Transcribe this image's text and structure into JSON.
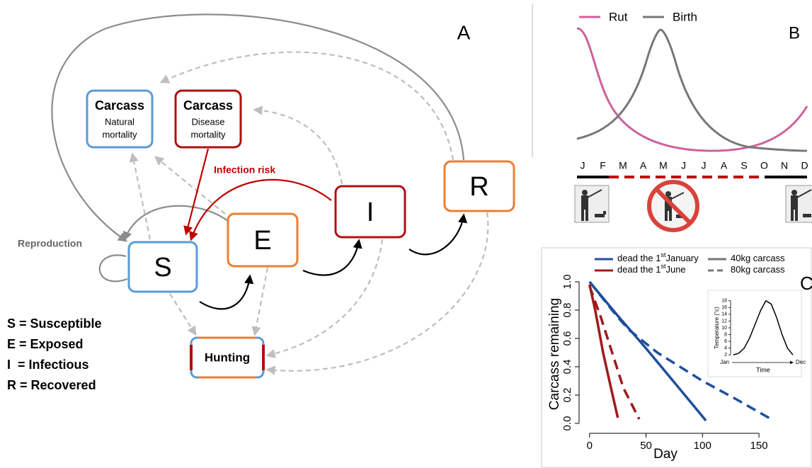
{
  "panel_a": {
    "label": "A",
    "nodes": {
      "carcass_natural": {
        "title": "Carcass",
        "sub": [
          "Natural",
          "mortality"
        ]
      },
      "carcass_disease": {
        "title": "Carcass",
        "sub": [
          "Disease",
          "mortality"
        ]
      },
      "s": "S",
      "e": "E",
      "i": "I",
      "r": "R",
      "hunting": "Hunting"
    },
    "annotations": {
      "infection": "Infection risk",
      "reproduction": "Reproduction"
    },
    "legend": [
      "S = Susceptible",
      "E = Exposed",
      "I  = Infectious",
      "R = Recovered"
    ]
  },
  "panel_b": {
    "label": "B",
    "legend": [
      "Rut",
      "Birth"
    ],
    "months": [
      "J",
      "F",
      "M",
      "A",
      "M",
      "J",
      "J",
      "A",
      "S",
      "O",
      "N",
      "D"
    ]
  },
  "chart_data": [
    {
      "type": "line",
      "label": "C",
      "xlabel": "Day",
      "ylabel": "Carcass remaining",
      "xlim": [
        -8,
        170
      ],
      "ylim": [
        -0.04,
        1.04
      ],
      "xticks": [
        0,
        50,
        100,
        150
      ],
      "yticks": [
        {
          "value": 0,
          "label": "0.0"
        },
        0.2,
        0.4,
        0.6,
        0.8,
        {
          "value": 1,
          "label": "1.0"
        }
      ],
      "legend": [
        {
          "text": "dead the 1",
          "sup": "st",
          "after": "January",
          "color": "#1f4e9c",
          "dash": false
        },
        {
          "text": "dead the 1",
          "sup": "st",
          "after": "June",
          "color": "#9e1b1b",
          "dash": false
        },
        {
          "text": "40kg carcass",
          "color": "#777777",
          "dash": false
        },
        {
          "text": "80kg carcass",
          "color": "#777777",
          "dash": true
        }
      ],
      "series": [
        {
          "color": "#1f4e9c",
          "dash": false,
          "x": [
            0,
            25,
            50,
            75,
            103
          ],
          "values": [
            1.0,
            0.76,
            0.53,
            0.29,
            0.02
          ]
        },
        {
          "color": "#1f4e9c",
          "dash": true,
          "x": [
            0,
            25,
            35,
            60,
            100,
            130,
            163
          ],
          "values": [
            1.0,
            0.75,
            0.66,
            0.5,
            0.3,
            0.17,
            0.02
          ]
        },
        {
          "color": "#9e1b1b",
          "dash": false,
          "x": [
            0,
            5,
            12,
            19,
            25
          ],
          "values": [
            0.98,
            0.8,
            0.5,
            0.25,
            0.04
          ]
        },
        {
          "color": "#9e1b1b",
          "dash": true,
          "x": [
            0,
            10,
            20,
            30,
            44
          ],
          "values": [
            0.97,
            0.75,
            0.5,
            0.25,
            0.03
          ]
        }
      ]
    },
    {
      "type": "line",
      "xlabel": "Time",
      "ylabel": "Temperature (°c)",
      "categories": [
        "Jan",
        null,
        null,
        null,
        null,
        null,
        null,
        null,
        null,
        null,
        null,
        "Dec"
      ],
      "values": [
        2,
        2.5,
        4,
        7,
        11,
        15,
        18,
        17,
        13,
        8,
        4,
        2
      ],
      "ylim": [
        1,
        19
      ],
      "yticks": [
        2,
        4,
        6,
        8,
        10,
        12,
        14,
        16,
        18
      ],
      "color": "#000000"
    }
  ]
}
